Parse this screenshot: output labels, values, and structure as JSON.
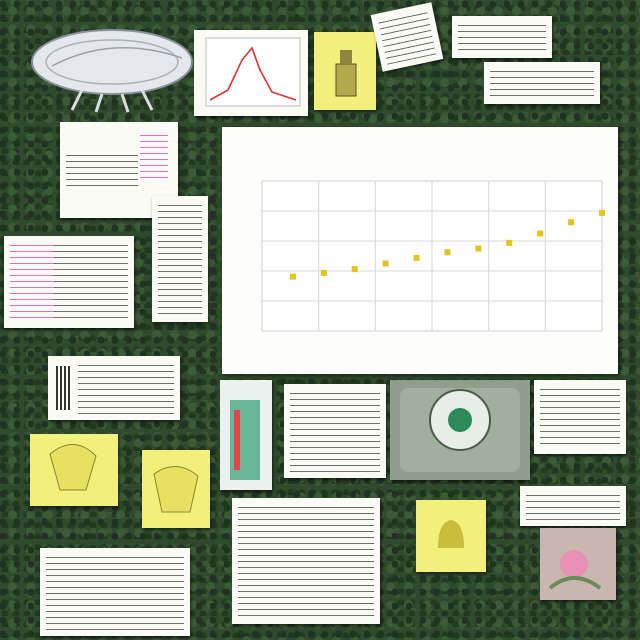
{
  "chart_data": {
    "type": "scatter",
    "title": "",
    "xlabel": "",
    "ylabel": "",
    "xlim": [
      0,
      11
    ],
    "ylim": [
      0,
      8
    ],
    "grid": true,
    "legend": "none",
    "series": [
      {
        "x": [
          1,
          2,
          3,
          4,
          5,
          6,
          7,
          8,
          9,
          10,
          11
        ],
        "y": [
          2.9,
          3.1,
          3.3,
          3.6,
          3.9,
          4.2,
          4.4,
          4.7,
          5.2,
          5.8,
          6.3
        ]
      }
    ]
  },
  "colors": {
    "background": "#2f4a2c",
    "marker": "#e6c21e",
    "grid": "#d8d8d8",
    "sticky_yellow": "#f2f07a"
  },
  "icons": {
    "insect": "insect-illustration-icon",
    "device": "handheld-scanner-icon",
    "beaker": "lab-tube-icon"
  }
}
